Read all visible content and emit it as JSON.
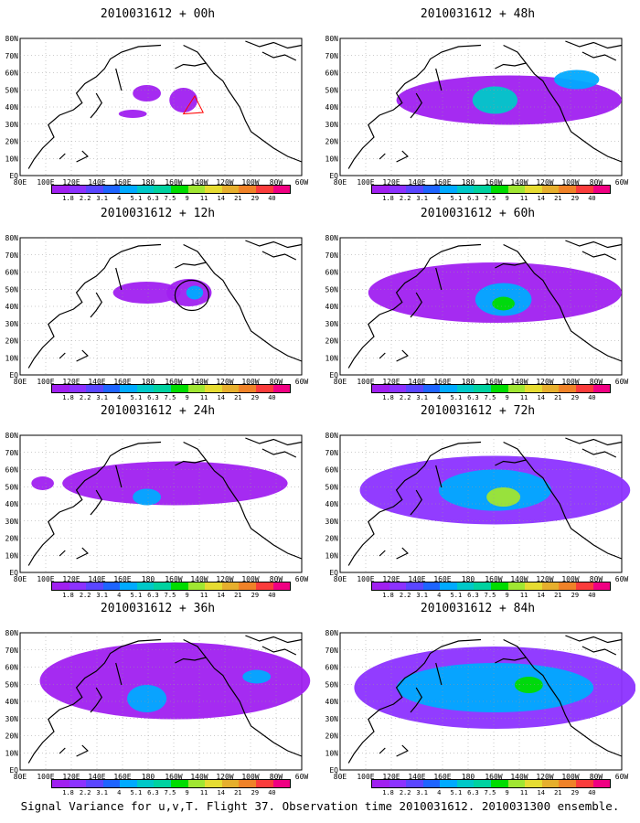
{
  "panels": [
    {
      "title": "2010031612 + 00h"
    },
    {
      "title": "2010031612 + 48h"
    },
    {
      "title": "2010031612 + 12h"
    },
    {
      "title": "2010031612 + 60h"
    },
    {
      "title": "2010031612 + 24h"
    },
    {
      "title": "2010031612 + 72h"
    },
    {
      "title": "2010031612 + 36h"
    },
    {
      "title": "2010031612 + 84h"
    }
  ],
  "lat_labels": [
    "80N",
    "70N",
    "60N",
    "50N",
    "40N",
    "30N",
    "20N",
    "10N",
    "EQ"
  ],
  "lon_labels": [
    "80E",
    "100E",
    "120E",
    "140E",
    "160E",
    "180",
    "160W",
    "140W",
    "120W",
    "100W",
    "80W",
    "60W"
  ],
  "colorbar": {
    "labels": [
      "1.8",
      "2.2",
      "3.1",
      "4",
      "5.1",
      "6.3",
      "7.5",
      "9",
      "11",
      "14",
      "21",
      "29",
      "40"
    ],
    "colors": [
      "#a020f0",
      "#8c32ff",
      "#5a46ff",
      "#1e64ff",
      "#00aaff",
      "#00c8c8",
      "#00d2a0",
      "#00dc00",
      "#a0e632",
      "#e6dc32",
      "#e6af2d",
      "#f08228",
      "#fa3c3c",
      "#f00082"
    ]
  },
  "footer": "Signal Variance for u,v,T. Flight 37. Observation time 2010031612. 2010031300 ensemble."
}
